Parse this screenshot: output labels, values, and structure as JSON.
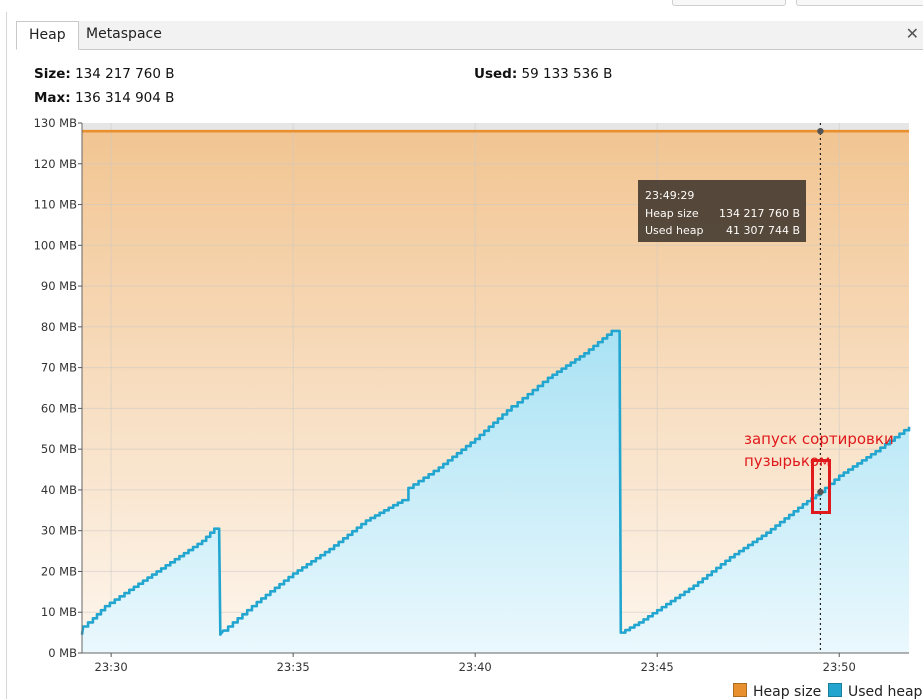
{
  "tabs": [
    {
      "label": "Heap",
      "active": true
    },
    {
      "label": "Metaspace",
      "active": false
    }
  ],
  "info": {
    "size_label": "Size:",
    "size_value": "134 217 760 B",
    "used_label": "Used:",
    "used_value": "59 133 536 B",
    "max_label": "Max:",
    "max_value": "136 314 904 B"
  },
  "tooltip": {
    "time": "23:49:29",
    "heap_label": "Heap size",
    "heap_value": "134 217 760 B",
    "used_label": "Used heap",
    "used_value": "41 307 744 B"
  },
  "annotation": {
    "line1": "запуск сортировки",
    "line2": "пузырьком",
    "color": "#e0191c"
  },
  "legend": {
    "heap_label": "Heap size",
    "used_label": "Used heap"
  },
  "colors": {
    "heap_line": "#e8902e",
    "used_line": "#22a6cf",
    "tooltip_bg": "#4a3f34"
  },
  "chart_data": {
    "type": "area",
    "y_unit": "MB",
    "ylim": [
      0,
      130
    ],
    "xlim": [
      "23:29:12",
      "23:51:55"
    ],
    "y_ticks": [
      "0 MB",
      "10 MB",
      "20 MB",
      "30 MB",
      "40 MB",
      "50 MB",
      "60 MB",
      "70 MB",
      "80 MB",
      "90 MB",
      "100 MB",
      "110 MB",
      "120 MB",
      "130 MB"
    ],
    "x_ticks": [
      "23:30",
      "23:35",
      "23:40",
      "23:45",
      "23:50"
    ],
    "grid": true,
    "legend_position": "bottom-right",
    "cursor_time": "23:49:29",
    "series": [
      {
        "name": "Heap size",
        "points": [
          [
            "23:29:12",
            128
          ],
          [
            "23:51:55",
            128
          ]
        ]
      },
      {
        "name": "Used heap",
        "points": [
          [
            "23:29:12",
            4.5
          ],
          [
            "23:29:14",
            6.5
          ],
          [
            "23:29:30",
            8.5
          ],
          [
            "23:29:50",
            11.5
          ],
          [
            "23:30:30",
            15.5
          ],
          [
            "23:31:30",
            21.5
          ],
          [
            "23:32:30",
            27.5
          ],
          [
            "23:32:50",
            30.5
          ],
          [
            "23:32:58",
            30.5
          ],
          [
            "23:33:00",
            4.5
          ],
          [
            "23:33:05",
            5.5
          ],
          [
            "23:34:00",
            12.5
          ],
          [
            "23:35:00",
            19.5
          ],
          [
            "23:36:00",
            25.5
          ],
          [
            "23:37:00",
            32.5
          ],
          [
            "23:38:00",
            37.5
          ],
          [
            "23:38:10",
            40.5
          ],
          [
            "23:39:00",
            45.5
          ],
          [
            "23:40:00",
            52.5
          ],
          [
            "23:41:00",
            60.5
          ],
          [
            "23:41:10",
            61.5
          ],
          [
            "23:42:00",
            67.5
          ],
          [
            "23:43:00",
            73.5
          ],
          [
            "23:43:45",
            79
          ],
          [
            "23:43:58",
            79
          ],
          [
            "23:44:00",
            5
          ],
          [
            "23:44:30",
            7.5
          ],
          [
            "23:45:00",
            10.5
          ],
          [
            "23:46:00",
            16.5
          ],
          [
            "23:47:00",
            23.5
          ],
          [
            "23:48:00",
            29.5
          ],
          [
            "23:49:00",
            36.5
          ],
          [
            "23:49:29",
            39.5
          ],
          [
            "23:50:00",
            43.5
          ],
          [
            "23:51:00",
            49.5
          ],
          [
            "23:51:55",
            55.5
          ]
        ]
      }
    ]
  }
}
